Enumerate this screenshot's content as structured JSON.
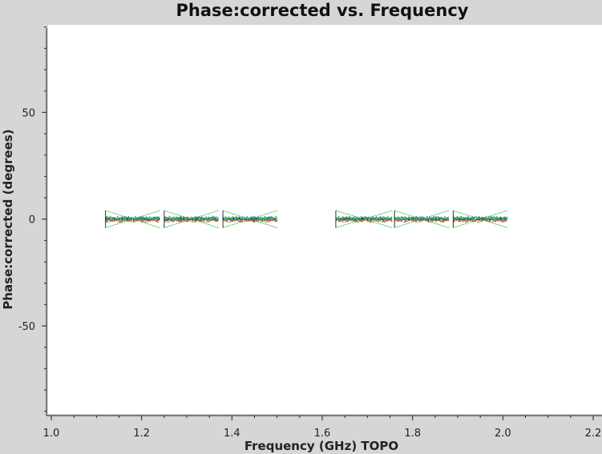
{
  "chart_data": {
    "type": "scatter",
    "title": "Phase:corrected vs. Frequency",
    "xlabel": "Frequency (GHz) TOPO",
    "ylabel": "Phase:corrected (degrees)",
    "xlim": [
      1.0,
      2.2
    ],
    "ylim": [
      -92,
      91
    ],
    "x_ticks": [
      "1.0",
      "1.2",
      "1.4",
      "1.6",
      "1.8",
      "2.0",
      "2.2"
    ],
    "y_ticks": [
      "50",
      "0",
      "-50"
    ],
    "grid": false,
    "legend": "none",
    "spectral_windows": [
      {
        "f_start": 1.12,
        "f_end": 1.24
      },
      {
        "f_start": 1.25,
        "f_end": 1.37
      },
      {
        "f_start": 1.38,
        "f_end": 1.5
      },
      {
        "f_start": 1.63,
        "f_end": 1.755
      },
      {
        "f_start": 1.76,
        "f_end": 1.88
      },
      {
        "f_start": 1.89,
        "f_end": 2.01
      }
    ],
    "envelope_peak_deg": 4,
    "series": [
      {
        "color": "#000000",
        "offset_deg": 0.0
      },
      {
        "color": "#cc2222",
        "offset_deg": -0.6
      },
      {
        "color": "#2a7fd4",
        "offset_deg": 0.5
      },
      {
        "color": "#7a3fbf",
        "offset_deg": -0.3
      },
      {
        "color": "#1a9a6a",
        "offset_deg": 0.7
      },
      {
        "color": "#c08a20",
        "offset_deg": -0.9
      },
      {
        "color": "#22bb33",
        "offset_deg": 0.0
      }
    ],
    "colors": {
      "background": "#d6d6d6",
      "plot_area": "#ffffff",
      "envelope": "#22bb33"
    }
  }
}
